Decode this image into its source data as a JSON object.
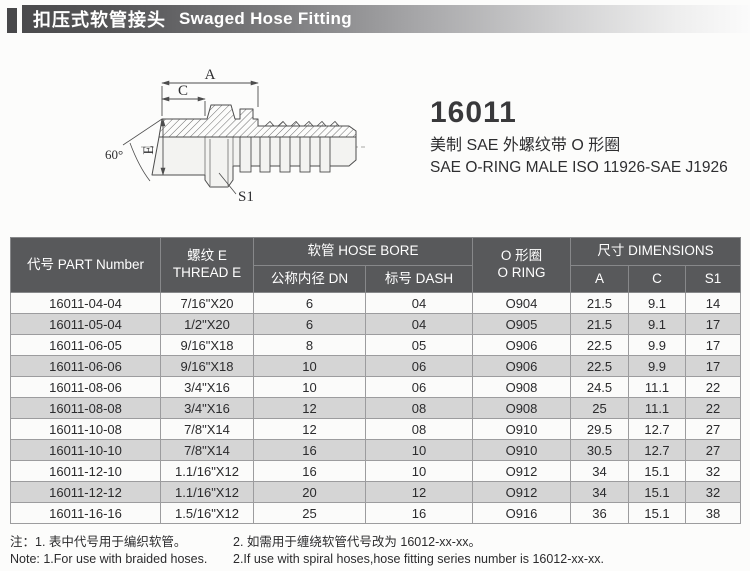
{
  "header": {
    "title_zh": "扣压式软管接头",
    "title_en": "Swaged Hose Fitting"
  },
  "product": {
    "model": "16011",
    "desc_zh": "美制 SAE 外螺纹带 O 形圈",
    "desc_en": "SAE O-RING MALE ISO 11926-SAE J1926"
  },
  "drawing": {
    "dim_a": "A",
    "dim_c": "C",
    "dim_e": "E",
    "angle": "60°",
    "dim_s1": "S1"
  },
  "table": {
    "header": {
      "part_number": "代号 PART Number",
      "thread_line1": "螺纹 E",
      "thread_line2": "THREAD E",
      "hose_bore_group": "软管 HOSE BORE",
      "dn": "公称内径 DN",
      "dash": "标号 DASH",
      "oring_line1": "O 形圈",
      "oring_line2": "O RING",
      "dimensions_group": "尺寸 DIMENSIONS",
      "dim_a": "A",
      "dim_c": "C",
      "dim_s1": "S1"
    },
    "rows": [
      [
        "16011-04-04",
        "7/16\"X20",
        "6",
        "04",
        "O904",
        "21.5",
        "9.1",
        "14"
      ],
      [
        "16011-05-04",
        "1/2\"X20",
        "6",
        "04",
        "O905",
        "21.5",
        "9.1",
        "17"
      ],
      [
        "16011-06-05",
        "9/16\"X18",
        "8",
        "05",
        "O906",
        "22.5",
        "9.9",
        "17"
      ],
      [
        "16011-06-06",
        "9/16\"X18",
        "10",
        "06",
        "O906",
        "22.5",
        "9.9",
        "17"
      ],
      [
        "16011-08-06",
        "3/4\"X16",
        "10",
        "06",
        "O908",
        "24.5",
        "11.1",
        "22"
      ],
      [
        "16011-08-08",
        "3/4\"X16",
        "12",
        "08",
        "O908",
        "25",
        "11.1",
        "22"
      ],
      [
        "16011-10-08",
        "7/8\"X14",
        "12",
        "08",
        "O910",
        "29.5",
        "12.7",
        "27"
      ],
      [
        "16011-10-10",
        "7/8\"X14",
        "16",
        "10",
        "O910",
        "30.5",
        "12.7",
        "27"
      ],
      [
        "16011-12-10",
        "1.1/16\"X12",
        "16",
        "10",
        "O912",
        "34",
        "15.1",
        "32"
      ],
      [
        "16011-12-12",
        "1.1/16\"X12",
        "20",
        "12",
        "O912",
        "34",
        "15.1",
        "32"
      ],
      [
        "16011-16-16",
        "1.5/16\"X12",
        "25",
        "16",
        "O916",
        "36",
        "15.1",
        "38"
      ]
    ]
  },
  "notes": {
    "zh_1": "注：1. 表中代号用于编织软管。",
    "zh_2": "2. 如需用于缠绕软管代号改为 16012-xx-xx。",
    "en_1": "Note: 1.For use with braided hoses.",
    "en_2": "2.If use with spiral hoses,hose fitting series number is 16012-xx-xx."
  },
  "colors": {
    "accent_block": "#48484a",
    "bar_start": "#4b4b4d",
    "bar_end": "#fbfbfb",
    "table_header_bg": "#58595b",
    "row_stripe": "#d5d5d5",
    "row_plain": "#fbfbfa",
    "grid_border": "#9c9c9e",
    "ink": "#2e2e30"
  }
}
